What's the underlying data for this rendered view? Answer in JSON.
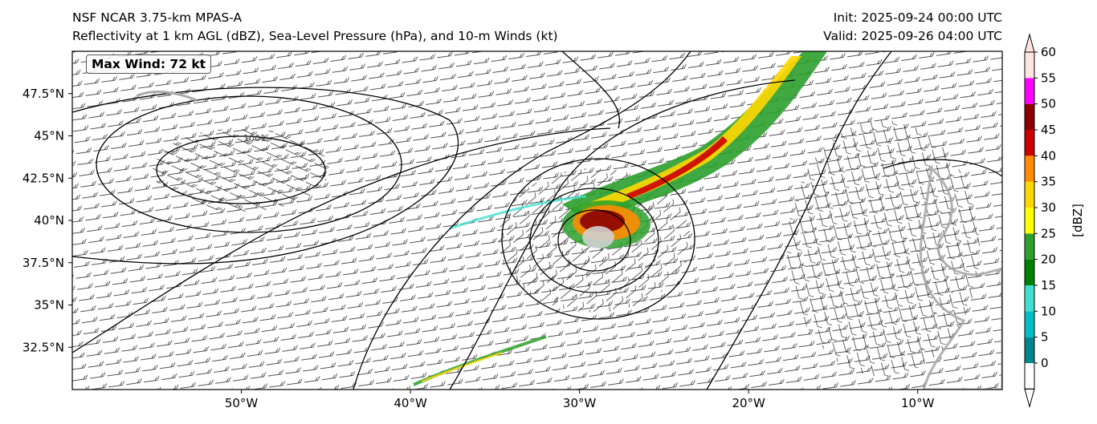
{
  "header": {
    "title_line1": "NSF NCAR 3.75-km MPAS-A",
    "title_line2": "Reflectivity at 1 km AGL (dBZ), Sea-Level Pressure (hPa), and 10-m Winds (kt)",
    "init": "Init: 2025-09-24 00:00 UTC",
    "valid": "Valid: 2025-09-26 04:00 UTC"
  },
  "annotation": {
    "max_wind": "Max Wind: 72 kt"
  },
  "map": {
    "lon_range": [
      -60,
      -5
    ],
    "lat_range": [
      30,
      50
    ],
    "lon_ticks": [
      "50°W",
      "40°W",
      "30°W",
      "20°W",
      "10°W"
    ],
    "lon_tick_values": [
      -50,
      -40,
      -30,
      -20,
      -10
    ],
    "lat_ticks": [
      "47.5°N",
      "45°N",
      "42.5°N",
      "40°N",
      "37.5°N",
      "35°N",
      "32.5°N"
    ],
    "lat_tick_values": [
      47.5,
      45,
      42.5,
      40,
      37.5,
      35,
      32.5
    ],
    "pressure_label": "1001"
  },
  "colorbar": {
    "label": "[dBZ]",
    "levels": [
      "0",
      "5",
      "10",
      "15",
      "20",
      "25",
      "30",
      "35",
      "40",
      "45",
      "50",
      "55",
      "60"
    ],
    "colors": [
      "#ffffff",
      "#00868b",
      "#00bfc8",
      "#40e0d0",
      "#008000",
      "#2ca02c",
      "#ffff00",
      "#ffd700",
      "#ff8c00",
      "#cc0000",
      "#8b0000",
      "#ff00ff",
      "#ffe4e1"
    ]
  }
}
